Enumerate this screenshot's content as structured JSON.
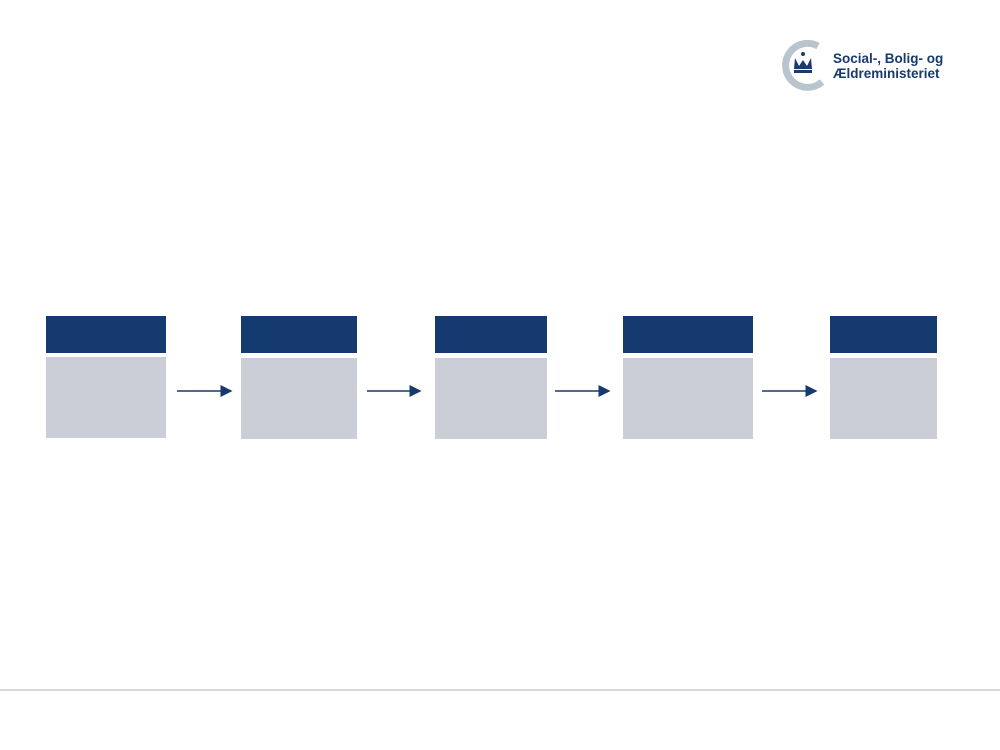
{
  "logo": {
    "lines": [
      "Social-, Bolig- og",
      "Ældreministeriet"
    ]
  }
}
